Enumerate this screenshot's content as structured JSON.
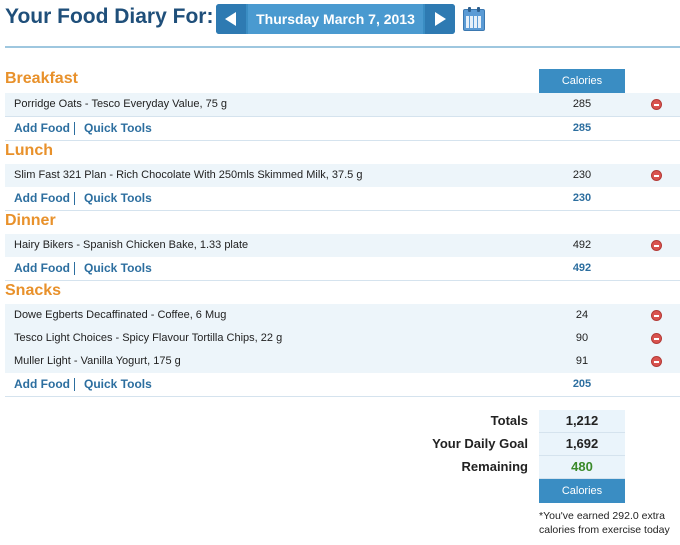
{
  "header": {
    "title": "Your Food Diary For:",
    "date": "Thursday March 7, 2013"
  },
  "columns": {
    "calories": "Calories"
  },
  "links": {
    "add_food": "Add Food",
    "quick_tools": "Quick Tools"
  },
  "meals": [
    {
      "name": "Breakfast",
      "total": "285",
      "items": [
        {
          "desc": "Porridge Oats - Tesco Everyday Value, 75 g",
          "cal": "285"
        }
      ]
    },
    {
      "name": "Lunch",
      "total": "230",
      "items": [
        {
          "desc": "Slim Fast 321 Plan - Rich Chocolate With 250mls Skimmed Milk, 37.5 g",
          "cal": "230"
        }
      ]
    },
    {
      "name": "Dinner",
      "total": "492",
      "items": [
        {
          "desc": "Hairy Bikers - Spanish Chicken Bake, 1.33 plate",
          "cal": "492"
        }
      ]
    },
    {
      "name": "Snacks",
      "total": "205",
      "items": [
        {
          "desc": "Dowe Egberts Decaffinated - Coffee, 6 Mug",
          "cal": "24"
        },
        {
          "desc": "Tesco Light Choices - Spicy Flavour Tortilla Chips, 22 g",
          "cal": "90"
        },
        {
          "desc": "Muller Light - Vanilla Yogurt, 175 g",
          "cal": "91"
        }
      ]
    }
  ],
  "summary": {
    "totals_label": "Totals",
    "totals": "1,212",
    "goal_label": "Your Daily Goal",
    "goal": "1,692",
    "remaining_label": "Remaining",
    "remaining": "480",
    "footer_label": "Calories",
    "note": "*You've earned 292.0 extra calories from exercise today"
  },
  "colors": {
    "accent": "#3a8dc3",
    "section": "#e8912b",
    "title": "#1f4f7a",
    "link": "#2c6e9f",
    "remaining": "#3a8a2a"
  },
  "icons": {
    "prev": "left-arrow-icon",
    "next": "right-arrow-icon",
    "calendar": "calendar-icon",
    "delete": "delete-icon"
  }
}
